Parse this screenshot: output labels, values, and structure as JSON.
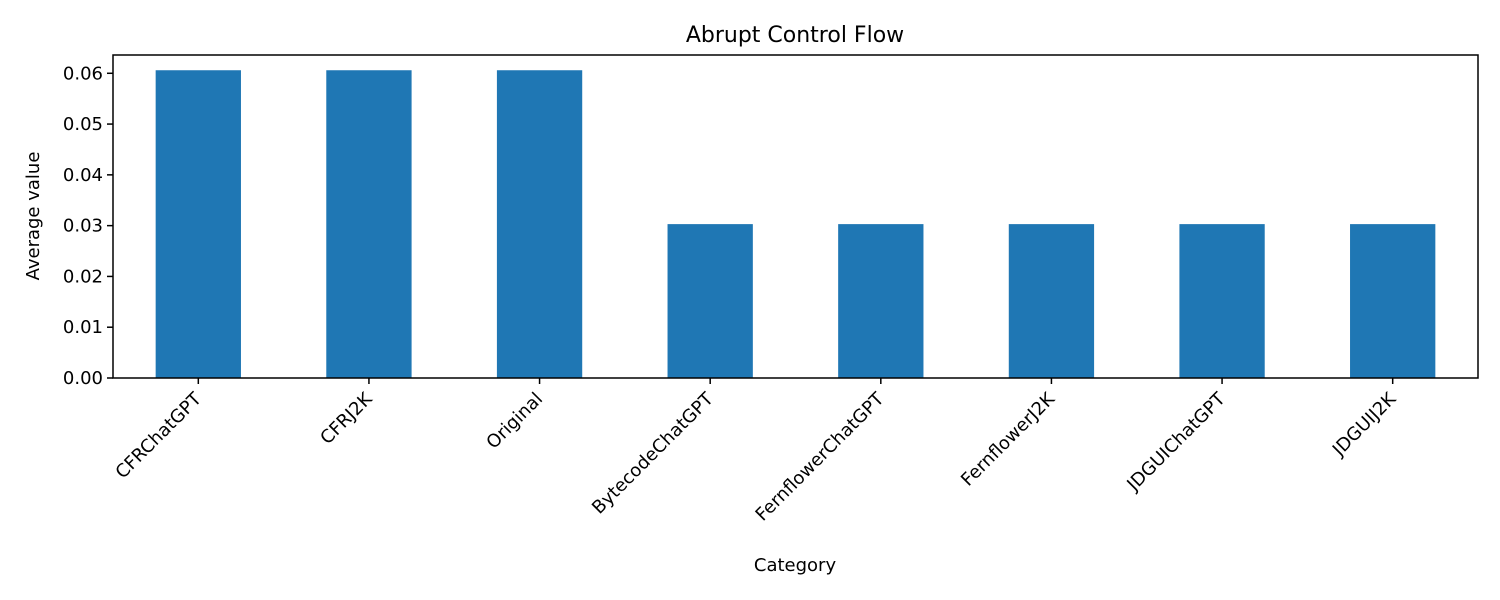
{
  "chart_data": {
    "type": "bar",
    "title": "Abrupt Control Flow",
    "xlabel": "Category",
    "ylabel": "Average value",
    "categories": [
      "CFRChatGPT",
      "CFRJ2K",
      "Original",
      "BytecodeChatGPT",
      "FernflowerChatGPT",
      "FernflowerJ2K",
      "JDGUIChatGPT",
      "JDGUIJ2K"
    ],
    "values": [
      0.0606,
      0.0606,
      0.0606,
      0.0303,
      0.0303,
      0.0303,
      0.0303,
      0.0303
    ],
    "ylim": [
      0,
      0.0636
    ],
    "yticks": [
      "0.00",
      "0.01",
      "0.02",
      "0.03",
      "0.04",
      "0.05",
      "0.06"
    ],
    "grid": false,
    "bar_color": "#1f77b4"
  }
}
